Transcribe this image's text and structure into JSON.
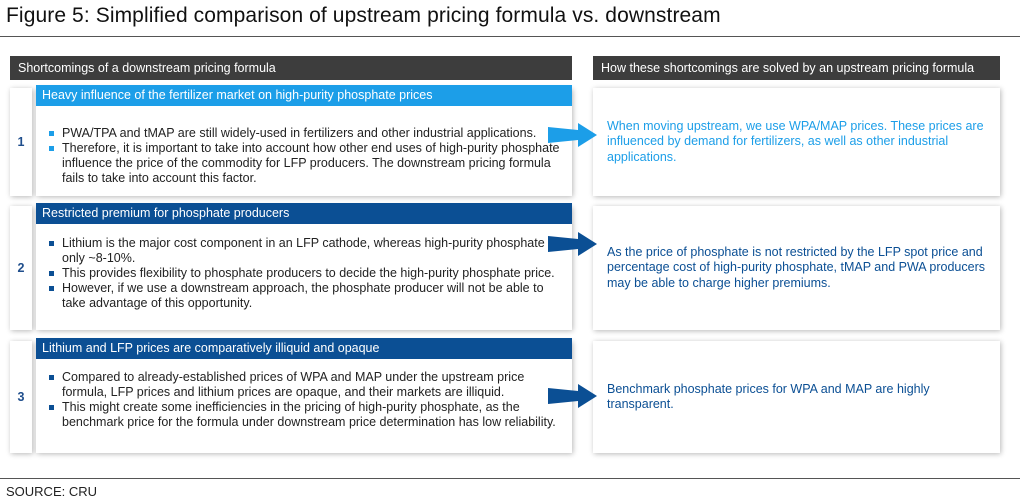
{
  "figure": {
    "title": "Figure 5: Simplified comparison of upstream pricing formula vs. downstream",
    "source": "SOURCE: CRU"
  },
  "headers": {
    "left": "Shortcomings of a downstream pricing formula",
    "right": "How these shortcomings are solved by an upstream pricing formula"
  },
  "rows": [
    {
      "number": "1",
      "title": "Heavy influence of the fertilizer market on high-purity phosphate prices",
      "band_color": "#1c9ee8",
      "bullets": [
        "PWA/TPA and tMAP are still widely-used in fertilizers and other industrial applications.",
        "Therefore, it is important to take into account how other end uses of high-purity phosphate influence the price of the commodity for LFP producers. The downstream pricing formula fails to take into account this factor."
      ],
      "solution": "When moving upstream, we use WPA/MAP prices. These prices are influenced by demand for fertilizers, as well as other industrial applications.",
      "solution_color": "#1c9ee8"
    },
    {
      "number": "2",
      "title": "Restricted premium for phosphate producers",
      "band_color": "#0b4f94",
      "bullets": [
        "Lithium is the major cost component in an LFP cathode, whereas high-purity phosphate is only ~8-10%.",
        "This provides flexibility to phosphate producers to decide the high-purity phosphate price.",
        "However, if we use a downstream approach, the phosphate producer will not be able to take advantage of this opportunity."
      ],
      "solution": "As the price of phosphate is not restricted by the LFP spot price and percentage cost of high-purity phosphate, tMAP and PWA producers may be able to charge higher premiums.",
      "solution_color": "#0b4f94"
    },
    {
      "number": "3",
      "title": "Lithium and LFP prices are comparatively illiquid and opaque",
      "band_color": "#0b4f94",
      "bullets": [
        "Compared to already-established prices of WPA and MAP under the upstream price formula, LFP prices and lithium prices are opaque, and their markets are illiquid.",
        "This might create some inefficiencies in the pricing of high-purity phosphate, as the benchmark price for the formula under downstream price determination has low reliability."
      ],
      "solution": "Benchmark phosphate prices for WPA and MAP are highly transparent.",
      "solution_color": "#0b4f94"
    }
  ]
}
